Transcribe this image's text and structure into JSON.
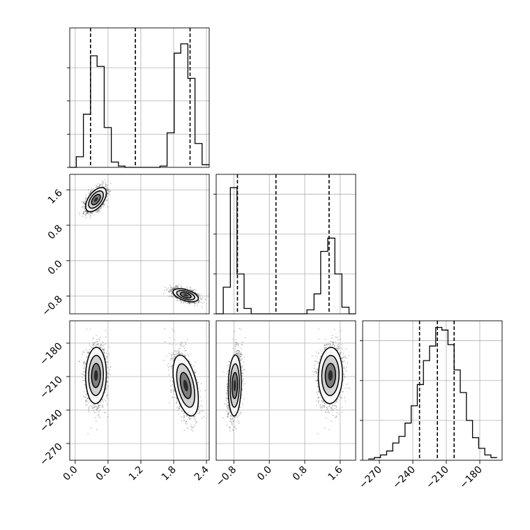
{
  "chart_data": {
    "type": "corner",
    "grid": true,
    "params": [
      {
        "range": [
          -0.1,
          2.45
        ],
        "ticks": [
          "0.0",
          "0.6",
          "1.2",
          "1.8",
          "2.4"
        ],
        "tick_values": [
          0.0,
          0.6,
          1.2,
          1.8,
          2.4
        ],
        "quantiles": [
          0.28,
          1.1,
          2.1
        ],
        "hist": {
          "edges": [
            -0.1,
            0.02,
            0.15,
            0.28,
            0.4,
            0.53,
            0.66,
            0.79,
            0.91,
            1.04,
            1.17,
            1.3,
            1.42,
            1.55,
            1.68,
            1.81,
            1.93,
            2.06,
            2.19,
            2.32,
            2.45
          ],
          "counts": [
            0.0,
            0.08,
            0.4,
            0.84,
            0.76,
            0.3,
            0.04,
            0.01,
            0.0,
            0.0,
            0.0,
            0.0,
            0.0,
            0.01,
            0.26,
            0.86,
            0.93,
            0.67,
            0.18,
            0.02
          ]
        },
        "max_count_tick_values": [
          0.0,
          0.25,
          0.5,
          0.75
        ]
      },
      {
        "range": [
          -1.2,
          1.95
        ],
        "ticks": [
          "−0.8",
          "0.0",
          "0.8",
          "1.6"
        ],
        "tick_values": [
          -0.8,
          0.0,
          0.8,
          1.6
        ],
        "quantiles": [
          -0.72,
          0.15,
          1.35
        ],
        "hist": {
          "edges": [
            -1.2,
            -1.04,
            -0.88,
            -0.73,
            -0.57,
            -0.41,
            -0.25,
            -0.1,
            0.06,
            0.22,
            0.38,
            0.53,
            0.69,
            0.85,
            1.01,
            1.16,
            1.32,
            1.48,
            1.64,
            1.8,
            1.95
          ],
          "counts": [
            0.0,
            0.2,
            0.95,
            0.3,
            0.04,
            0.0,
            0.0,
            0.0,
            0.0,
            0.0,
            0.0,
            0.0,
            0.0,
            0.03,
            0.15,
            0.47,
            0.57,
            0.3,
            0.05,
            0.0
          ]
        }
      },
      {
        "range": [
          -285,
          -160
        ],
        "ticks": [
          "−270",
          "−240",
          "−210",
          "−180"
        ],
        "tick_values": [
          -270,
          -240,
          -210,
          -180
        ],
        "quantiles": [
          -234,
          -218,
          -203
        ],
        "hist": {
          "edges": [
            -280,
            -274.5,
            -269,
            -263.5,
            -258,
            -252.5,
            -247,
            -241.5,
            -236,
            -230.5,
            -225,
            -219.5,
            -214,
            -208.5,
            -203,
            -197.5,
            -192,
            -186.5,
            -181,
            -175.5,
            -170,
            -164.5
          ],
          "counts": [
            0.01,
            0.02,
            0.04,
            0.07,
            0.13,
            0.18,
            0.28,
            0.41,
            0.57,
            0.75,
            0.86,
            1.0,
            0.98,
            0.87,
            0.68,
            0.51,
            0.3,
            0.17,
            0.09,
            0.04,
            0.02
          ]
        }
      }
    ],
    "modes": [
      {
        "p0": 0.38,
        "p1": 1.38,
        "p2": -209,
        "s0": 0.09,
        "s1": 0.13,
        "s2": 12,
        "r01": 0.55,
        "r02": 0.05,
        "r12": 0.05
      },
      {
        "p0": 2.02,
        "p1": -0.78,
        "p2": -218,
        "s0": 0.11,
        "s1": 0.07,
        "s2": 13,
        "r01": -0.5,
        "r02": -0.45,
        "r12": 0.1
      }
    ]
  }
}
